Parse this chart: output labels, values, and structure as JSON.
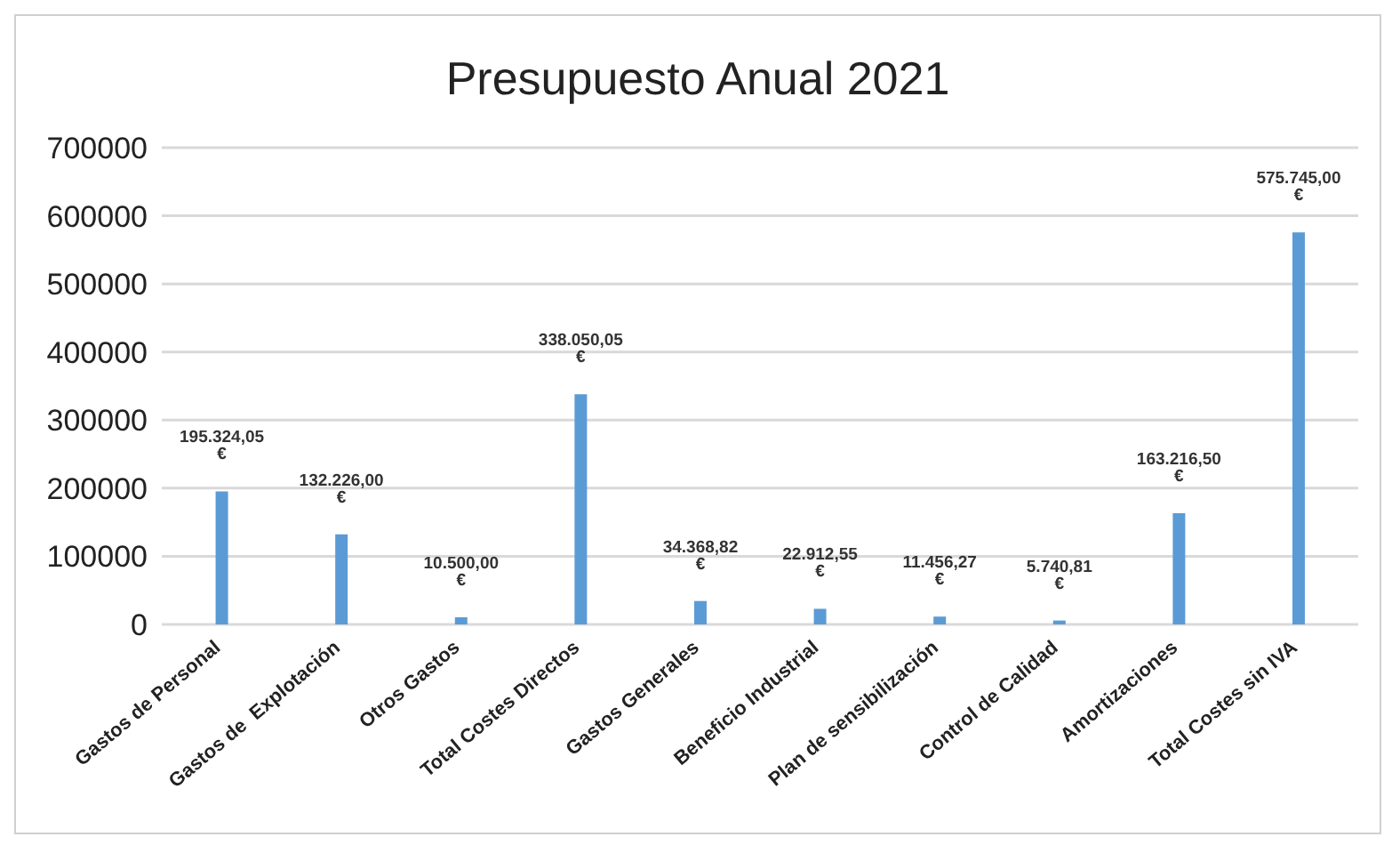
{
  "chart_data": {
    "type": "bar",
    "title": "Presupuesto Anual 2021",
    "categories": [
      "Gastos de Personal",
      "Gastos de  Explotación",
      "Otros Gastos",
      "Total Costes Directos",
      "Gastos Generales",
      "Beneficio Industrial",
      "Plan de sensibilización",
      "Control de Calidad",
      "Amortizaciones",
      "Total Costes sin IVA"
    ],
    "values": [
      195324.05,
      132226.0,
      10500.0,
      338050.05,
      34368.82,
      22912.55,
      11456.27,
      5740.81,
      163216.5,
      575745.0
    ],
    "value_labels": [
      "195.324,05 €",
      "132.226,00 €",
      "10.500,00 €",
      "338.050,05 €",
      "34.368,82 €",
      "22.912,55 €",
      "11.456,27 €",
      "5.740,81 €",
      "163.216,50 €",
      "575.745,00 €"
    ],
    "color": "#5b9bd5",
    "ylim": [
      0,
      700000
    ],
    "yticks": [
      0,
      100000,
      200000,
      300000,
      400000,
      500000,
      600000,
      700000
    ],
    "grid": "y",
    "legend": false
  }
}
